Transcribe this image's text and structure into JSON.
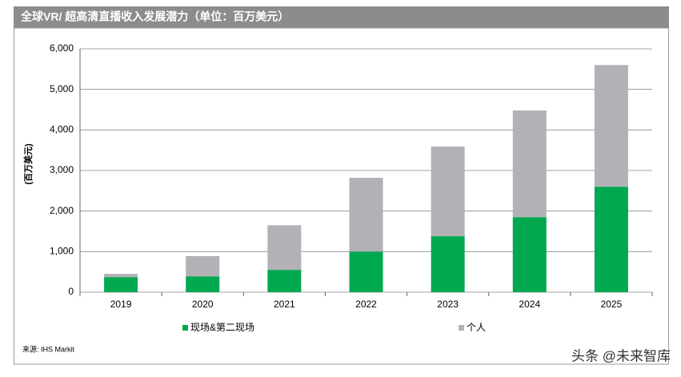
{
  "chart_data": {
    "type": "stacked_bar",
    "title": "全球VR/ 超高清直播收入发展潜力（单位：百万美元）",
    "y_label": "(百万美元)",
    "source": "来源: IHS Markit",
    "watermark": "头条 @未来智库",
    "categories": [
      "2019",
      "2020",
      "2021",
      "2022",
      "2023",
      "2024",
      "2025"
    ],
    "series": [
      {
        "name": "现场&第二现场",
        "color": "#00a84f",
        "values": [
          370,
          390,
          550,
          1000,
          1380,
          1850,
          2600
        ]
      },
      {
        "name": "个人",
        "color": "#b1b1b6",
        "values": [
          80,
          500,
          1100,
          1820,
          2210,
          2630,
          3000
        ]
      }
    ],
    "ylim": [
      0,
      6000
    ],
    "yticks": [
      0,
      {
        "value": 1000,
        "label": "1,000"
      },
      {
        "value": 2000,
        "label": "2,000"
      },
      {
        "value": 3000,
        "label": "3,000"
      },
      {
        "value": 4000,
        "label": "4,000"
      },
      {
        "value": 5000,
        "label": "5,000"
      },
      {
        "value": 6000,
        "label": "6,000"
      }
    ],
    "legend": "bottom"
  }
}
